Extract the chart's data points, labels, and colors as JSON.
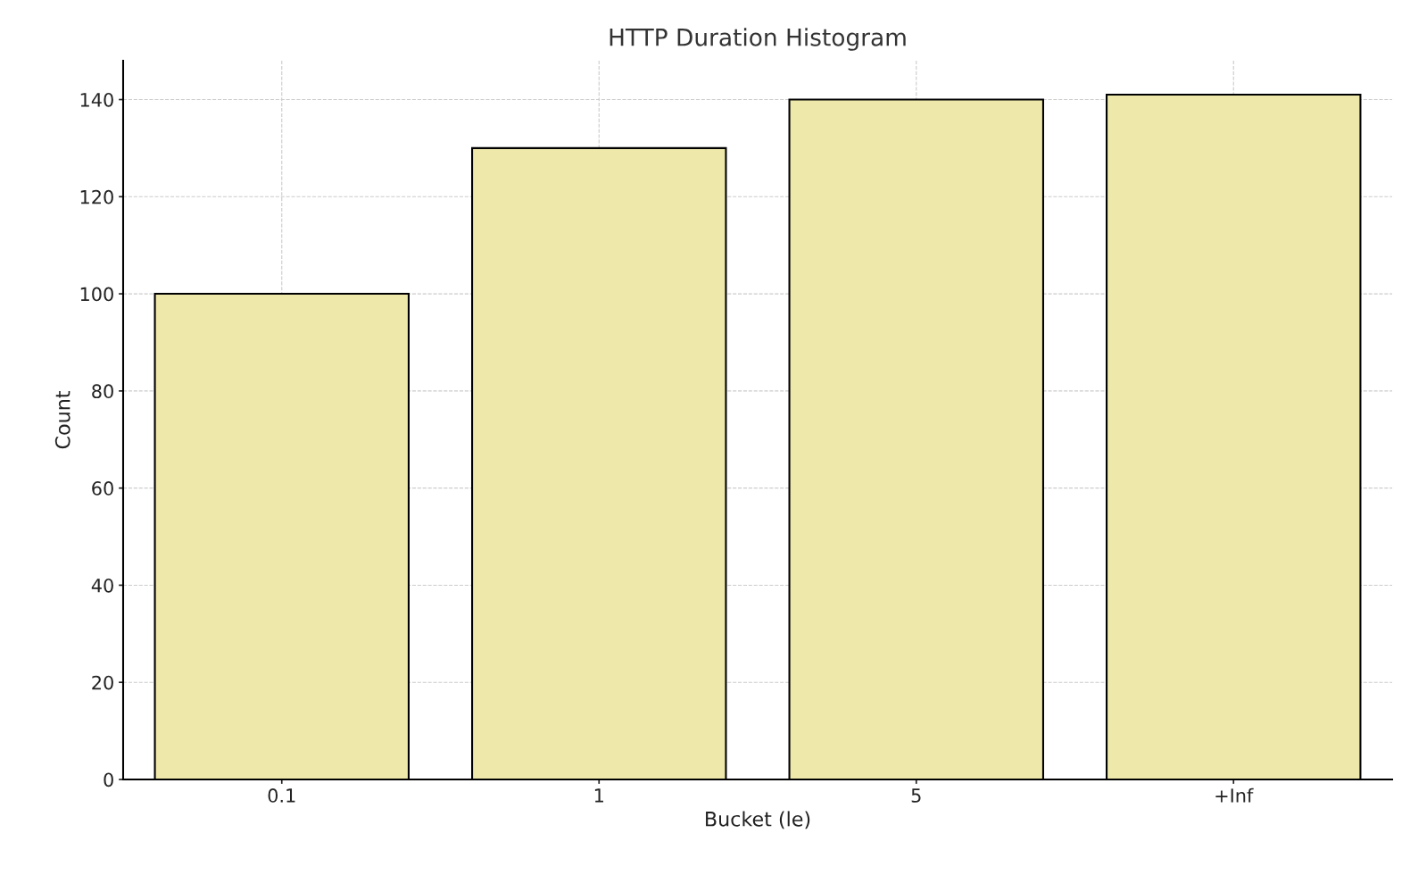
{
  "chart_data": {
    "type": "bar",
    "title": "HTTP Duration Histogram",
    "xlabel": "Bucket (le)",
    "ylabel": "Count",
    "categories": [
      "0.1",
      "1",
      "5",
      "+Inf"
    ],
    "values": [
      100,
      130,
      140,
      141
    ],
    "color": "#eee8aa",
    "ylim": [
      0,
      148
    ],
    "yticks": [
      0,
      20,
      40,
      60,
      80,
      100,
      120,
      140
    ],
    "grid": true
  }
}
